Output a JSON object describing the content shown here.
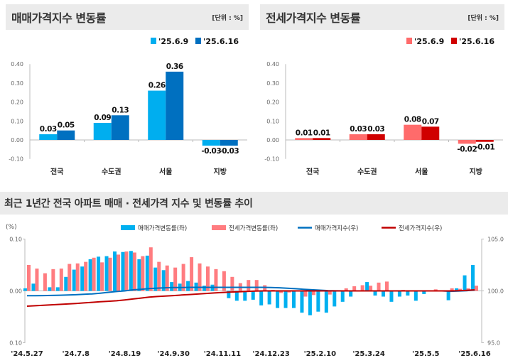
{
  "panels": [
    {
      "title": "매매가격지수 변동률",
      "unit": "[단위 : %]"
    },
    {
      "title": "전세가격지수 변동률",
      "unit": "[단위 : %]"
    }
  ],
  "section_title": "최근 1년간 전국 아파트 매매 · 전세가격 지수 및 변동률 추이",
  "chart_data": [
    {
      "type": "bar",
      "title": "매매가격지수 변동률",
      "categories": [
        "전국",
        "수도권",
        "서울",
        "지방"
      ],
      "series": [
        {
          "name": "'25.6.9",
          "values": [
            0.03,
            0.09,
            0.26,
            -0.03
          ],
          "color": "#00aeef"
        },
        {
          "name": "'25.6.16",
          "values": [
            0.05,
            0.13,
            0.36,
            -0.03
          ],
          "color": "#0070c0"
        }
      ],
      "ylim": [
        -0.1,
        0.4
      ],
      "yticks": [
        "0.40",
        "0.30",
        "0.20",
        "0.10",
        "0.00",
        "-0.10"
      ],
      "legend": "top-right",
      "grid": false
    },
    {
      "type": "bar",
      "title": "전세가격지수 변동률",
      "categories": [
        "전국",
        "수도권",
        "서울",
        "지방"
      ],
      "series": [
        {
          "name": "'25.6.9",
          "values": [
            0.01,
            0.03,
            0.08,
            -0.02
          ],
          "color": "#ff6b6b"
        },
        {
          "name": "'25.6.16",
          "values": [
            0.01,
            0.03,
            0.07,
            -0.01
          ],
          "color": "#d00000"
        }
      ],
      "ylim": [
        -0.1,
        0.4
      ],
      "yticks": [
        "0.40",
        "0.30",
        "0.20",
        "0.10",
        "0.00",
        "-0.10"
      ],
      "legend": "top-right",
      "grid": false
    },
    {
      "type": "bar+line",
      "ylabel": "(%)",
      "yticks_left": [
        "0.10",
        "0.00",
        "0.10"
      ],
      "ylim_left": [
        -0.1,
        0.1
      ],
      "yticks_right": [
        "105.0",
        "100.0",
        "95.0"
      ],
      "ylim_right": [
        95,
        105
      ],
      "xticks": [
        "'24.5.27",
        "'24.7.8",
        "'24.8.19",
        "'24.9.30",
        "'24.11.11",
        "'24.12.23",
        "'25.2.10",
        "'25.3.24",
        "'25.5.5",
        "'25.6.16"
      ],
      "xtick_week_index": [
        0,
        6,
        12,
        18,
        24,
        30,
        36,
        42,
        49,
        55
      ],
      "legend": "top",
      "series": [
        {
          "name": "매매가격변동률(좌)",
          "kind": "bar",
          "color": "#00b0f0",
          "values": [
            0.005,
            0.014,
            0.0,
            0.007,
            0.007,
            0.027,
            0.041,
            0.047,
            0.061,
            0.066,
            0.067,
            0.076,
            0.075,
            0.077,
            0.061,
            0.068,
            0.045,
            0.04,
            0.017,
            0.014,
            0.019,
            0.016,
            0.01,
            0.012,
            0.0,
            -0.014,
            -0.019,
            -0.019,
            -0.017,
            -0.028,
            -0.026,
            -0.033,
            -0.033,
            -0.033,
            -0.042,
            -0.047,
            -0.04,
            -0.042,
            -0.03,
            -0.021,
            -0.011,
            0.0,
            0.017,
            -0.009,
            -0.011,
            -0.021,
            -0.011,
            -0.009,
            -0.019,
            -0.006,
            0.0,
            0.0,
            -0.018,
            0.005,
            0.03,
            0.05
          ]
        },
        {
          "name": "전세가격변동률(좌)",
          "kind": "bar",
          "color": "#ff7c80",
          "values": [
            0.05,
            0.043,
            0.034,
            0.042,
            0.043,
            0.052,
            0.053,
            0.056,
            0.064,
            0.055,
            0.064,
            0.07,
            0.076,
            0.074,
            0.067,
            0.084,
            0.056,
            0.049,
            0.045,
            0.052,
            0.065,
            0.053,
            0.047,
            0.042,
            0.038,
            0.027,
            0.015,
            0.021,
            0.021,
            0.011,
            0.002,
            -0.004,
            -0.003,
            0.0,
            -0.011,
            -0.008,
            0.0,
            -0.007,
            0.0,
            0.005,
            0.009,
            0.011,
            0.01,
            0.016,
            0.018,
            0.0,
            0.002,
            0.0,
            0.0,
            0.0,
            0.003,
            0.0,
            0.005,
            0.004,
            0.005,
            0.01
          ]
        },
        {
          "name": "매매가격지수(우)",
          "kind": "line",
          "color": "#0070c0",
          "values": [
            99.54,
            99.54,
            99.55,
            99.56,
            99.58,
            99.6,
            99.63,
            99.67,
            99.71,
            99.78,
            99.86,
            99.94,
            100.0,
            100.1,
            100.16,
            100.22,
            100.27,
            100.3,
            100.32,
            100.33,
            100.34,
            100.34,
            100.34,
            100.34,
            100.34,
            100.34,
            100.34,
            100.34,
            100.34,
            100.34,
            100.33,
            100.3,
            100.26,
            100.21,
            100.16,
            100.11,
            100.07,
            100.03,
            100.01,
            100.0,
            100.0,
            100.0,
            100.0,
            100.0,
            100.0,
            100.0,
            100.0,
            100.0,
            100.0,
            100.0,
            100.0,
            100.0,
            99.96,
            99.98,
            100.02,
            100.08
          ]
        },
        {
          "name": "전세가격지수(우)",
          "kind": "line",
          "color": "#c00000",
          "values": [
            98.53,
            98.57,
            98.61,
            98.66,
            98.7,
            98.74,
            98.79,
            98.84,
            98.9,
            98.95,
            99.0,
            99.05,
            99.13,
            99.22,
            99.31,
            99.4,
            99.46,
            99.5,
            99.55,
            99.6,
            99.65,
            99.7,
            99.75,
            99.8,
            99.85,
            99.89,
            99.92,
            99.95,
            99.98,
            100.0,
            100.0,
            100.0,
            100.0,
            100.0,
            100.0,
            100.0,
            100.0,
            100.0,
            100.0,
            100.0,
            100.0,
            100.0,
            100.0,
            100.0,
            100.0,
            100.0,
            100.0,
            100.0,
            100.0,
            100.0,
            100.0,
            100.0,
            100.0,
            100.02,
            100.05,
            100.1
          ]
        }
      ]
    }
  ]
}
